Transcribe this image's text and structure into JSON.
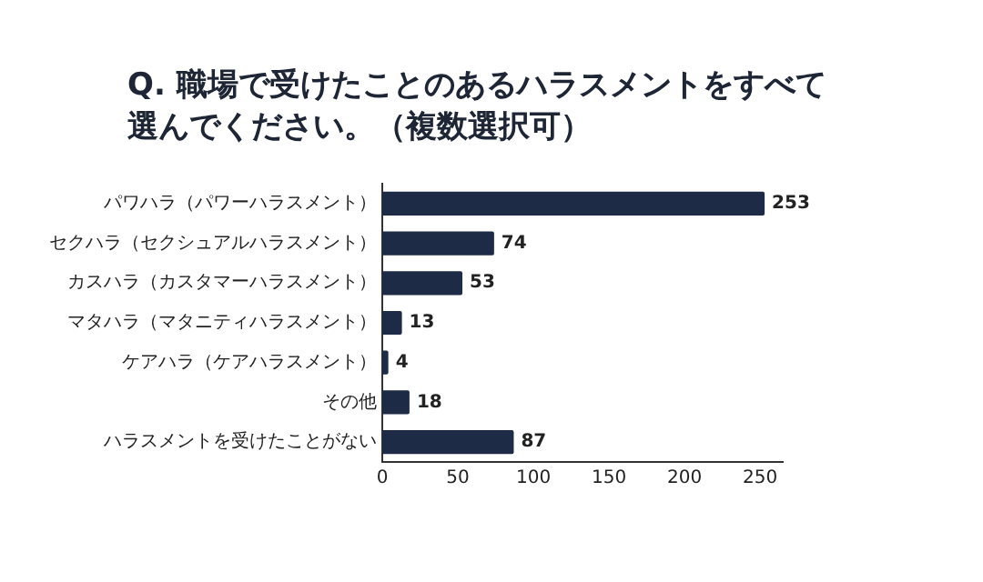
{
  "chart_data": {
    "type": "bar",
    "orientation": "horizontal",
    "title": "Q. 職場で受けたことのあるハラスメントをすべて選んでください。（複数選択可）",
    "categories": [
      "パワハラ（パワーハラスメント）",
      "セクハラ（セクシュアルハラスメント）",
      "カスハラ（カスタマーハラスメント）",
      "マタハラ（マタニティハラスメント）",
      "ケアハラ（ケアハラスメント）",
      "その他",
      "ハラスメントを受けたことがない"
    ],
    "values": [
      253,
      74,
      53,
      13,
      4,
      18,
      87
    ],
    "color": "#1e2b47",
    "xlim": [
      0,
      265
    ],
    "xticks": [
      0,
      50,
      100,
      150,
      200,
      250
    ],
    "grid": false,
    "legend": false,
    "data_labels": true
  }
}
